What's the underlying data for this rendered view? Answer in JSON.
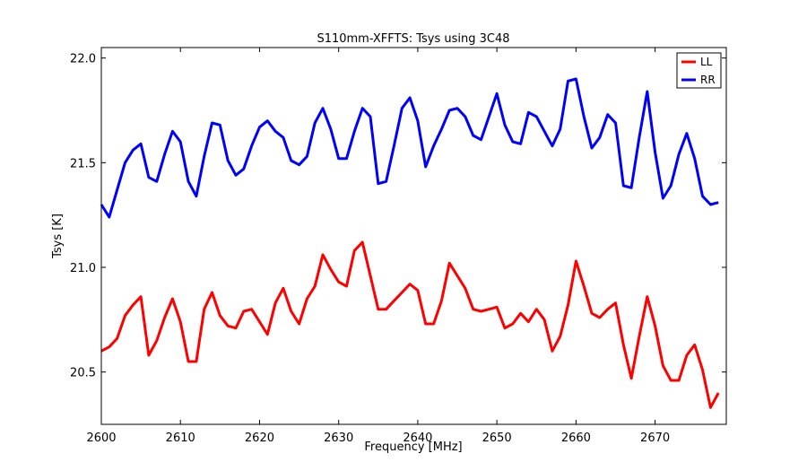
{
  "chart_data": {
    "type": "line",
    "title": "S110mm-XFFTS: Tsys using 3C48",
    "xlabel": "Frequency [MHz]",
    "ylabel": "Tsys [K]",
    "xlim": [
      2600,
      2679
    ],
    "ylim": [
      20.25,
      22.05
    ],
    "xticks": [
      2600,
      2610,
      2620,
      2630,
      2640,
      2650,
      2660,
      2670
    ],
    "yticks": [
      20.5,
      21.0,
      21.5,
      22.0
    ],
    "xtick_labels": [
      "2600",
      "2610",
      "2620",
      "2630",
      "2640",
      "2650",
      "2660",
      "2670"
    ],
    "ytick_labels": [
      "20.5",
      "21.0",
      "21.5",
      "22.0"
    ],
    "legend_position": "top-right",
    "x": [
      2600,
      2601,
      2602,
      2603,
      2604,
      2605,
      2606,
      2607,
      2608,
      2609,
      2610,
      2611,
      2612,
      2613,
      2614,
      2615,
      2616,
      2617,
      2618,
      2619,
      2620,
      2621,
      2622,
      2623,
      2624,
      2625,
      2626,
      2627,
      2628,
      2629,
      2630,
      2631,
      2632,
      2633,
      2634,
      2635,
      2636,
      2637,
      2638,
      2639,
      2640,
      2641,
      2642,
      2643,
      2644,
      2645,
      2646,
      2647,
      2648,
      2649,
      2650,
      2651,
      2652,
      2653,
      2654,
      2655,
      2656,
      2657,
      2658,
      2659,
      2660,
      2661,
      2662,
      2663,
      2664,
      2665,
      2666,
      2667,
      2668,
      2669,
      2670,
      2671,
      2672,
      2673,
      2674,
      2675,
      2676,
      2677,
      2678
    ],
    "series": [
      {
        "name": "LL",
        "color": "#ff0000",
        "values": [
          20.6,
          20.62,
          20.66,
          20.77,
          20.82,
          20.86,
          20.58,
          20.65,
          20.76,
          20.85,
          20.74,
          20.55,
          20.55,
          20.8,
          20.88,
          20.77,
          20.72,
          20.71,
          20.79,
          20.8,
          20.74,
          20.68,
          20.83,
          20.9,
          20.79,
          20.73,
          20.85,
          20.91,
          21.06,
          20.99,
          20.93,
          20.91,
          21.08,
          21.12,
          20.96,
          20.8,
          20.8,
          20.84,
          20.88,
          20.92,
          20.89,
          20.73,
          20.73,
          20.84,
          21.02,
          20.96,
          20.9,
          20.8,
          20.79,
          20.8,
          20.81,
          20.71,
          20.73,
          20.78,
          20.74,
          20.8,
          20.75,
          20.6,
          20.67,
          20.82,
          21.03,
          20.91,
          20.78,
          20.76,
          20.8,
          20.83,
          20.63,
          20.47,
          20.67,
          20.86,
          20.72,
          20.53,
          20.46,
          20.46,
          20.58,
          20.63,
          20.51,
          20.33,
          20.4
        ]
      },
      {
        "name": "RR",
        "color": "#0000ff",
        "values": [
          21.3,
          21.24,
          21.37,
          21.5,
          21.56,
          21.59,
          21.43,
          21.41,
          21.54,
          21.65,
          21.6,
          21.41,
          21.34,
          21.53,
          21.69,
          21.68,
          21.51,
          21.44,
          21.47,
          21.58,
          21.67,
          21.7,
          21.65,
          21.62,
          21.51,
          21.49,
          21.53,
          21.69,
          21.76,
          21.66,
          21.52,
          21.52,
          21.65,
          21.76,
          21.72,
          21.4,
          21.41,
          21.58,
          21.76,
          21.81,
          21.7,
          21.48,
          21.58,
          21.66,
          21.75,
          21.76,
          21.72,
          21.63,
          21.61,
          21.72,
          21.83,
          21.68,
          21.6,
          21.59,
          21.74,
          21.72,
          21.65,
          21.58,
          21.66,
          21.89,
          21.9,
          21.72,
          21.57,
          21.62,
          21.73,
          21.69,
          21.39,
          21.38,
          21.62,
          21.84,
          21.55,
          21.33,
          21.39,
          21.54,
          21.64,
          21.52,
          21.34,
          21.3,
          21.31
        ]
      }
    ]
  }
}
